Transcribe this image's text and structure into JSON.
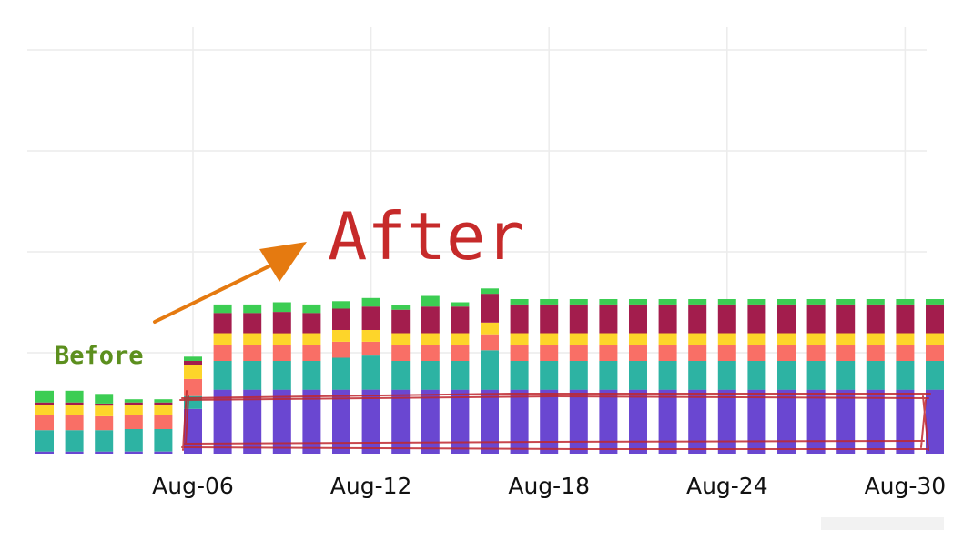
{
  "chart_data": {
    "type": "bar",
    "stacked": true,
    "categories": [
      "Aug-01",
      "Aug-02",
      "Aug-03",
      "Aug-04",
      "Aug-05",
      "Aug-06",
      "Aug-07",
      "Aug-08",
      "Aug-09",
      "Aug-10",
      "Aug-11",
      "Aug-12",
      "Aug-13",
      "Aug-14",
      "Aug-15",
      "Aug-16",
      "Aug-17",
      "Aug-18",
      "Aug-19",
      "Aug-20",
      "Aug-21",
      "Aug-22",
      "Aug-23",
      "Aug-24",
      "Aug-25",
      "Aug-26",
      "Aug-27",
      "Aug-28",
      "Aug-29",
      "Aug-30",
      "Aug-31"
    ],
    "tick_labels": [
      "Aug-06",
      "Aug-12",
      "Aug-18",
      "Aug-24",
      "Aug-30"
    ],
    "title": "",
    "xlabel": "",
    "ylabel": "",
    "ylim": [
      0,
      400
    ],
    "grid": true,
    "legend": "none",
    "series": [
      {
        "color": "#6a47d1",
        "values": [
          2,
          2,
          2,
          2,
          2,
          42,
          60,
          60,
          60,
          60,
          60,
          60,
          60,
          60,
          60,
          60,
          60,
          60,
          60,
          60,
          60,
          60,
          60,
          60,
          60,
          60,
          60,
          60,
          60,
          60,
          60
        ]
      },
      {
        "color": "#2db3a3",
        "values": [
          20,
          20,
          20,
          21,
          21,
          12,
          27,
          27,
          27,
          27,
          30,
          32,
          27,
          27,
          27,
          37,
          27,
          27,
          27,
          27,
          27,
          27,
          27,
          27,
          27,
          27,
          27,
          27,
          27,
          27,
          27
        ]
      },
      {
        "color": "#f96f66",
        "values": [
          14,
          14,
          13,
          13,
          13,
          16,
          15,
          15,
          15,
          15,
          15,
          13,
          15,
          15,
          15,
          15,
          15,
          15,
          15,
          15,
          15,
          15,
          15,
          15,
          15,
          15,
          15,
          15,
          15,
          15,
          15
        ]
      },
      {
        "color": "#fdd52a",
        "values": [
          10,
          10,
          10,
          10,
          10,
          13,
          11,
          11,
          11,
          11,
          11,
          11,
          11,
          11,
          11,
          11,
          11,
          11,
          11,
          11,
          11,
          11,
          11,
          11,
          11,
          11,
          11,
          11,
          11,
          11,
          11
        ]
      },
      {
        "color": "#a31d4d",
        "values": [
          2,
          2,
          2,
          2,
          2,
          4,
          19,
          19,
          20,
          19,
          20,
          22,
          22,
          25,
          25,
          27,
          27,
          27,
          27,
          27,
          27,
          27,
          27,
          27,
          27,
          27,
          27,
          27,
          27,
          27,
          27
        ]
      },
      {
        "color": "#3ccd53",
        "values": [
          11,
          11,
          9,
          3,
          3,
          4,
          8,
          8,
          9,
          8,
          7,
          8,
          4,
          10,
          4,
          5,
          5,
          5,
          5,
          5,
          5,
          5,
          5,
          5,
          5,
          5,
          5,
          5,
          5,
          5,
          5
        ]
      }
    ],
    "annotations": [
      {
        "text": "After",
        "color": "#c62a2a"
      },
      {
        "text": "Before",
        "color": "#5c8f1e"
      }
    ]
  }
}
